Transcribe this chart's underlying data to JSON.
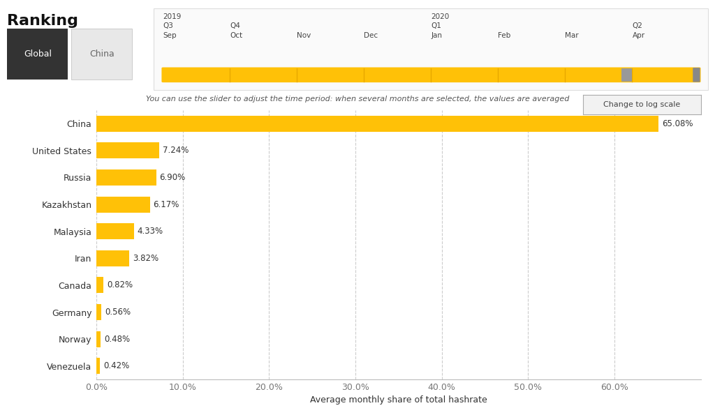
{
  "title": "Ranking",
  "countries": [
    "China",
    "United States",
    "Russia",
    "Kazakhstan",
    "Malaysia",
    "Iran",
    "Canada",
    "Germany",
    "Norway",
    "Venezuela"
  ],
  "values": [
    65.08,
    7.24,
    6.9,
    6.17,
    4.33,
    3.82,
    0.82,
    0.56,
    0.48,
    0.42
  ],
  "labels": [
    "65.08%",
    "7.24%",
    "6.90%",
    "6.17%",
    "4.33%",
    "3.82%",
    "0.82%",
    "0.56%",
    "0.48%",
    "0.42%"
  ],
  "bar_color": "#FFC107",
  "background_color": "#FFFFFF",
  "xlabel": "Average monthly share of total hashrate",
  "xticks": [
    0,
    10,
    20,
    30,
    40,
    50,
    60
  ],
  "xlim": [
    0,
    70
  ],
  "grid_color": "#CCCCCC",
  "text_color": "#333333",
  "subtitle_text": "You can use the slider to adjust the time period: when several months are selected, the values are averaged",
  "slider_years": [
    "2019",
    "2020"
  ],
  "slider_quarters": [
    "Q3",
    "Q4",
    "Q1",
    "Q2"
  ],
  "slider_months": [
    "Sep",
    "Oct",
    "Nov",
    "Dec",
    "Jan",
    "Feb",
    "Mar",
    "Apr"
  ],
  "tab_global_bg": "#333333",
  "tab_global_text": "#FFFFFF",
  "tab_china_bg": "#E8E8E8",
  "tab_china_text": "#666666",
  "log_button_text": "Change to log scale",
  "slider_bar_color": "#FFC107",
  "slider_divider_color": "#E8A800",
  "slider_handle_color": "#999999",
  "panel_border_color": "#DDDDDD"
}
